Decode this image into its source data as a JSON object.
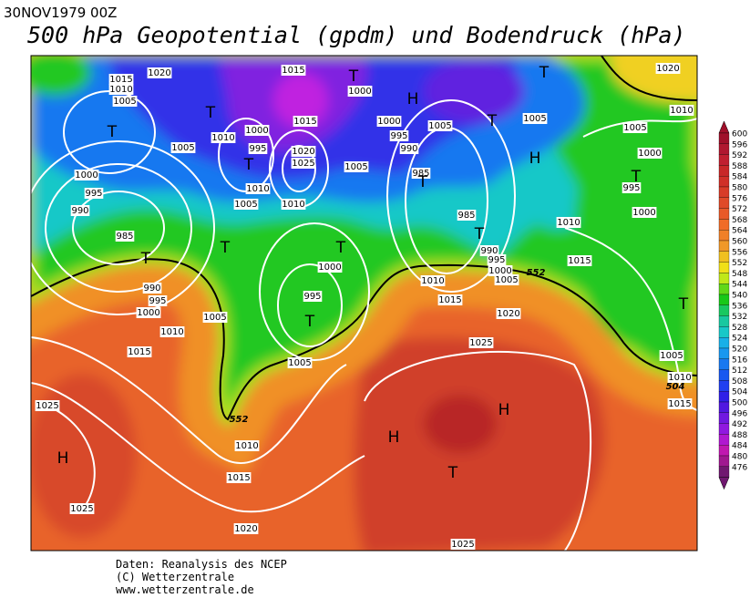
{
  "header": {
    "date": "30NOV1979 00Z",
    "title": "500 hPa Geopotential (gpdm) und Bodendruck (hPa)"
  },
  "map": {
    "pressure_labels": [
      1020,
      1015,
      1010,
      1005,
      1015,
      1000,
      1015,
      1000,
      995,
      1020,
      1025,
      1010,
      1010,
      1005,
      1005,
      1010,
      1005,
      1000,
      1005,
      995,
      990,
      985,
      1005,
      1005,
      1000,
      995,
      1000,
      1010,
      1015,
      1020,
      1010,
      1000,
      995,
      990,
      985,
      990,
      995,
      1000,
      1005,
      1010,
      1015,
      1000,
      995,
      985,
      990,
      995,
      1000,
      1005,
      1010,
      1015,
      1020,
      1025,
      1005,
      1005,
      1010,
      1015,
      1025,
      1010,
      1015,
      1025,
      1020,
      1025
    ],
    "contour_labels": [
      552,
      504,
      552
    ],
    "centers": [
      "T",
      "T",
      "T",
      "H",
      "T",
      "T",
      "T",
      "H",
      "T",
      "T",
      "T",
      "T",
      "T",
      "T",
      "T",
      "T",
      "H",
      "H",
      "H",
      "T"
    ]
  },
  "colorbar": {
    "levels": [
      600,
      596,
      592,
      588,
      584,
      580,
      576,
      572,
      568,
      564,
      560,
      556,
      552,
      548,
      544,
      540,
      536,
      532,
      528,
      524,
      520,
      516,
      512,
      508,
      504,
      500,
      496,
      492,
      488,
      484,
      480,
      476
    ],
    "colors": [
      "#a0102a",
      "#b01830",
      "#c02030",
      "#c82828",
      "#d03028",
      "#d83c28",
      "#e04a28",
      "#e85a28",
      "#f06c28",
      "#f08028",
      "#f09828",
      "#f0c020",
      "#f0e018",
      "#c0e818",
      "#60d818",
      "#18c818",
      "#18c860",
      "#18c8a0",
      "#18c8c8",
      "#18b0e8",
      "#1898f0",
      "#1878f0",
      "#1858f0",
      "#2040f0",
      "#3020e8",
      "#5018e0",
      "#7018e0",
      "#9018e0",
      "#b018d0",
      "#c018b0",
      "#a01890",
      "#701870"
    ]
  },
  "footer": {
    "lines": [
      "Daten: Reanalysis des NCEP",
      "(C) Wetterzentrale",
      "www.wetterzentrale.de"
    ]
  }
}
